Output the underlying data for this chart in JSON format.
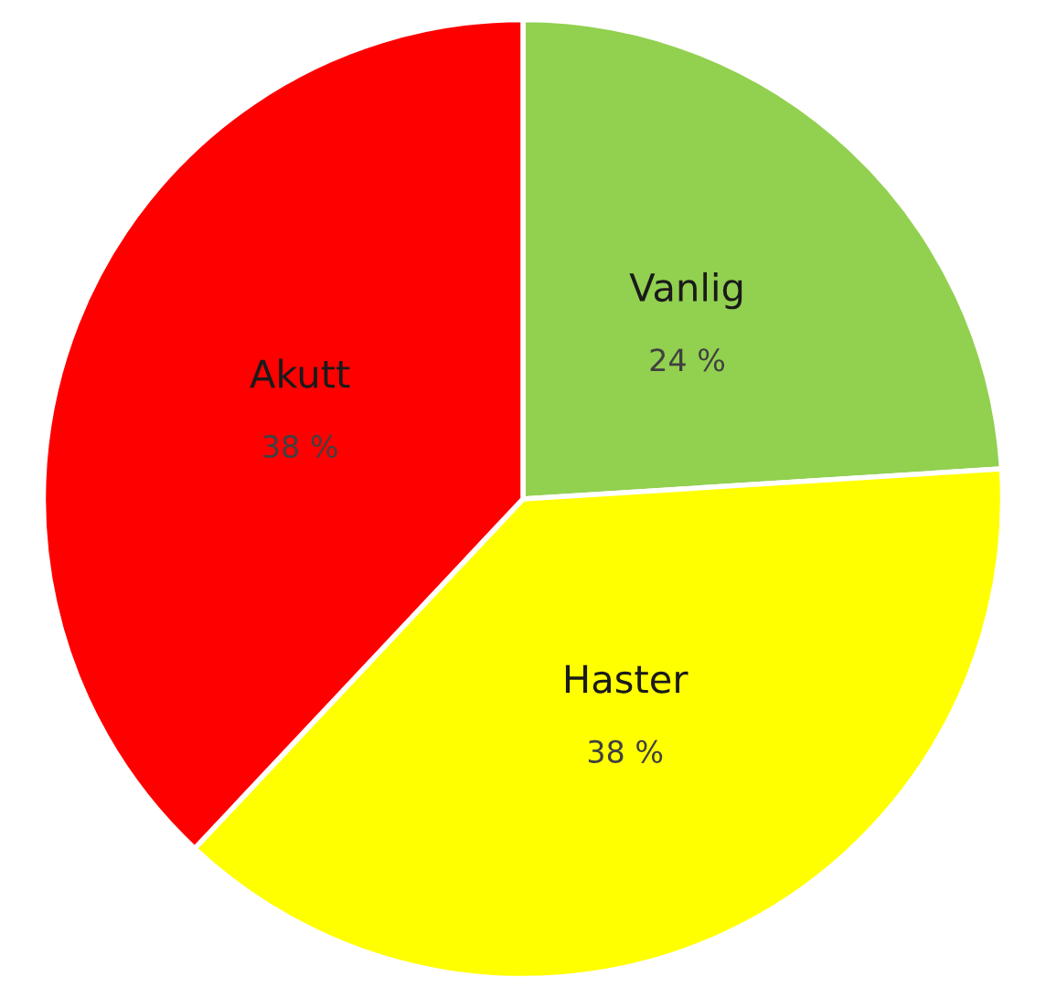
{
  "chart_data": {
    "type": "pie",
    "categories": [
      "Vanlig",
      "Haster",
      "Akutt"
    ],
    "values": [
      24,
      38,
      38
    ],
    "colors": [
      "#92d050",
      "#ffff00",
      "#ff0000"
    ],
    "value_labels": [
      "24 %",
      "38 %",
      "38 %"
    ],
    "legend": false
  }
}
